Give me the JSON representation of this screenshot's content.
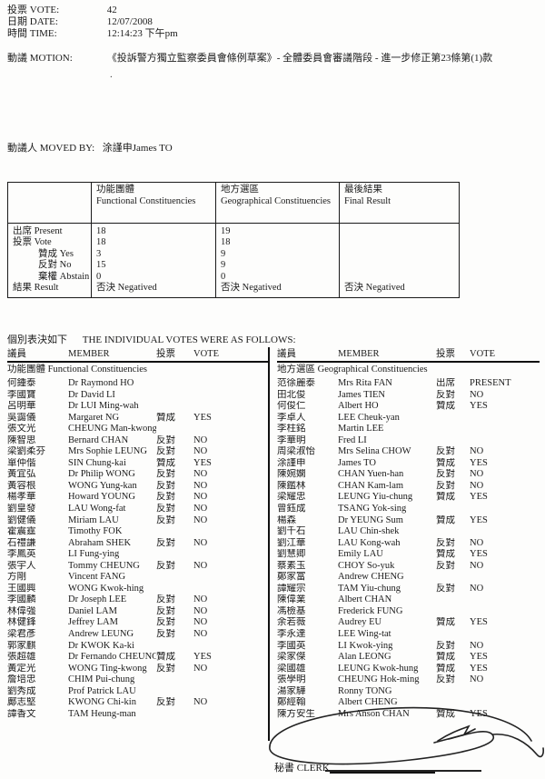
{
  "header": {
    "vote_label": "投票 VOTE:",
    "vote_value": "42",
    "date_label": "日期 DATE:",
    "date_value": "12/07/2008",
    "time_label": "時間 TIME:",
    "time_value": "12:14:23 下午pm",
    "motion_label": "動議 MOTION:",
    "motion_value": "《投訴警方獨立監察委員會條例草案》- 全體委員會審議階段 - 進一步修正第23條第(1)款",
    "stray_mark": ".",
    "moved_by_label": "動議人 MOVED BY:",
    "moved_by_value": "涂謹申James TO"
  },
  "summary": {
    "columns": [
      {
        "zh": "功能團體",
        "en": "Functional Constituencies"
      },
      {
        "zh": "地方選區",
        "en": "Geographical Constituencies"
      },
      {
        "zh": "最後結果",
        "en": "Final Result"
      }
    ],
    "rows": [
      {
        "label": "出席 Present",
        "fc": "18",
        "gc": "19",
        "fr": "",
        "indent": false
      },
      {
        "label": "投票 Vote",
        "fc": "18",
        "gc": "18",
        "fr": "",
        "indent": false
      },
      {
        "label": "贊成 Yes",
        "fc": "3",
        "gc": "9",
        "fr": "",
        "indent": true
      },
      {
        "label": "反對 No",
        "fc": "15",
        "gc": "9",
        "fr": "",
        "indent": true
      },
      {
        "label": "棄權 Abstain",
        "fc": "0",
        "gc": "0",
        "fr": "",
        "indent": true
      },
      {
        "label": "結果 Result",
        "fc": "否決 Negatived",
        "gc": "否決 Negatived",
        "fr": "否決 Negatived",
        "indent": false
      }
    ]
  },
  "individual": {
    "title_zh": "個別表決如下",
    "title_en": "THE INDIVIDUAL VOTES WERE AS FOLLOWS:",
    "col_member_zh": "議員",
    "col_member_en": "MEMBER",
    "col_vote_zh": "投票",
    "col_vote_en": "VOTE",
    "left": {
      "group": "功能團體 Functional Constituencies",
      "rows": [
        {
          "zh": "何鍾泰",
          "en": "Dr Raymond HO",
          "vzh": "",
          "ven": ""
        },
        {
          "zh": "李國寶",
          "en": "Dr David LI",
          "vzh": "",
          "ven": ""
        },
        {
          "zh": "呂明華",
          "en": "Dr LUI Ming-wah",
          "vzh": "",
          "ven": ""
        },
        {
          "zh": "吳靄儀",
          "en": "Margaret NG",
          "vzh": "贊成",
          "ven": "YES"
        },
        {
          "zh": "張文光",
          "en": "CHEUNG Man-kwong",
          "vzh": "",
          "ven": ""
        },
        {
          "zh": "陳智思",
          "en": "Bernard CHAN",
          "vzh": "反對",
          "ven": "NO"
        },
        {
          "zh": "梁劉柔芬",
          "en": "Mrs Sophie LEUNG",
          "vzh": "反對",
          "ven": "NO"
        },
        {
          "zh": "單仲偕",
          "en": "SIN Chung-kai",
          "vzh": "贊成",
          "ven": "YES"
        },
        {
          "zh": "黃宜弘",
          "en": "Dr Philip WONG",
          "vzh": "反對",
          "ven": "NO"
        },
        {
          "zh": "黃容根",
          "en": "WONG Yung-kan",
          "vzh": "反對",
          "ven": "NO"
        },
        {
          "zh": "楊孝華",
          "en": "Howard YOUNG",
          "vzh": "反對",
          "ven": "NO"
        },
        {
          "zh": "劉皇發",
          "en": "LAU Wong-fat",
          "vzh": "反對",
          "ven": "NO"
        },
        {
          "zh": "劉健儀",
          "en": "Miriam LAU",
          "vzh": "反對",
          "ven": "NO"
        },
        {
          "zh": "霍震霆",
          "en": "Timothy FOK",
          "vzh": "",
          "ven": ""
        },
        {
          "zh": "石禮謙",
          "en": "Abraham SHEK",
          "vzh": "反對",
          "ven": "NO"
        },
        {
          "zh": "李鳳英",
          "en": "LI Fung-ying",
          "vzh": "",
          "ven": ""
        },
        {
          "zh": "張宇人",
          "en": "Tommy CHEUNG",
          "vzh": "反對",
          "ven": "NO"
        },
        {
          "zh": "方剛",
          "en": "Vincent FANG",
          "vzh": "",
          "ven": ""
        },
        {
          "zh": "王國興",
          "en": "WONG Kwok-hing",
          "vzh": "",
          "ven": ""
        },
        {
          "zh": "李國麟",
          "en": "Dr Joseph LEE",
          "vzh": "反對",
          "ven": "NO"
        },
        {
          "zh": "林偉強",
          "en": "Daniel LAM",
          "vzh": "反對",
          "ven": "NO"
        },
        {
          "zh": "林健鋒",
          "en": "Jeffrey LAM",
          "vzh": "反對",
          "ven": "NO"
        },
        {
          "zh": "梁君彥",
          "en": "Andrew LEUNG",
          "vzh": "反對",
          "ven": "NO"
        },
        {
          "zh": "郭家麒",
          "en": "Dr KWOK Ka-ki",
          "vzh": "",
          "ven": ""
        },
        {
          "zh": "張超雄",
          "en": "Dr Fernando CHEUNG",
          "vzh": "贊成",
          "ven": "YES"
        },
        {
          "zh": "黃定光",
          "en": "WONG Ting-kwong",
          "vzh": "反對",
          "ven": "NO"
        },
        {
          "zh": "詹培忠",
          "en": "CHIM Pui-chung",
          "vzh": "",
          "ven": ""
        },
        {
          "zh": "劉秀成",
          "en": "Prof Patrick LAU",
          "vzh": "",
          "ven": ""
        },
        {
          "zh": "鄺志堅",
          "en": "KWONG Chi-kin",
          "vzh": "反對",
          "ven": "NO"
        },
        {
          "zh": "譚香文",
          "en": "TAM Heung-man",
          "vzh": "",
          "ven": ""
        }
      ]
    },
    "right": {
      "group": "地方選區 Geographical Constituencies",
      "rows": [
        {
          "zh": "范徐麗泰",
          "en": "Mrs Rita FAN",
          "vzh": "出席",
          "ven": "PRESENT"
        },
        {
          "zh": "田北俊",
          "en": "James TIEN",
          "vzh": "反對",
          "ven": "NO"
        },
        {
          "zh": "何俊仁",
          "en": "Albert HO",
          "vzh": "贊成",
          "ven": "YES"
        },
        {
          "zh": "李卓人",
          "en": "LEE Cheuk-yan",
          "vzh": "",
          "ven": ""
        },
        {
          "zh": "李柱銘",
          "en": "Martin LEE",
          "vzh": "",
          "ven": ""
        },
        {
          "zh": "李華明",
          "en": "Fred LI",
          "vzh": "",
          "ven": ""
        },
        {
          "zh": "周梁淑怡",
          "en": "Mrs Selina CHOW",
          "vzh": "反對",
          "ven": "NO"
        },
        {
          "zh": "涂謹申",
          "en": "James TO",
          "vzh": "贊成",
          "ven": "YES"
        },
        {
          "zh": "陳婉嫻",
          "en": "CHAN Yuen-han",
          "vzh": "反對",
          "ven": "NO"
        },
        {
          "zh": "陳鑑林",
          "en": "CHAN Kam-lam",
          "vzh": "反對",
          "ven": "NO"
        },
        {
          "zh": "梁耀忠",
          "en": "LEUNG Yiu-chung",
          "vzh": "贊成",
          "ven": "YES"
        },
        {
          "zh": "曾鈺成",
          "en": "TSANG Yok-sing",
          "vzh": "",
          "ven": ""
        },
        {
          "zh": "楊森",
          "en": "Dr YEUNG Sum",
          "vzh": "贊成",
          "ven": "YES"
        },
        {
          "zh": "劉千石",
          "en": "LAU Chin-shek",
          "vzh": "",
          "ven": ""
        },
        {
          "zh": "劉江華",
          "en": "LAU Kong-wah",
          "vzh": "反對",
          "ven": "NO"
        },
        {
          "zh": "劉慧卿",
          "en": "Emily LAU",
          "vzh": "贊成",
          "ven": "YES"
        },
        {
          "zh": "蔡素玉",
          "en": "CHOY So-yuk",
          "vzh": "反對",
          "ven": "NO"
        },
        {
          "zh": "鄭家富",
          "en": "Andrew CHENG",
          "vzh": "",
          "ven": ""
        },
        {
          "zh": "譚耀宗",
          "en": "TAM Yiu-chung",
          "vzh": "反對",
          "ven": "NO"
        },
        {
          "zh": "陳偉業",
          "en": "Albert CHAN",
          "vzh": "",
          "ven": ""
        },
        {
          "zh": "馮檢基",
          "en": "Frederick FUNG",
          "vzh": "",
          "ven": ""
        },
        {
          "zh": "余若薇",
          "en": "Audrey EU",
          "vzh": "贊成",
          "ven": "YES"
        },
        {
          "zh": "李永達",
          "en": "LEE Wing-tat",
          "vzh": "",
          "ven": ""
        },
        {
          "zh": "李國英",
          "en": "LI Kwok-ying",
          "vzh": "反對",
          "ven": "NO"
        },
        {
          "zh": "梁家傑",
          "en": "Alan LEONG",
          "vzh": "贊成",
          "ven": "YES"
        },
        {
          "zh": "梁國雄",
          "en": "LEUNG Kwok-hung",
          "vzh": "贊成",
          "ven": "YES"
        },
        {
          "zh": "張學明",
          "en": "CHEUNG Hok-ming",
          "vzh": "反對",
          "ven": "NO"
        },
        {
          "zh": "湯家驊",
          "en": "Ronny TONG",
          "vzh": "",
          "ven": ""
        },
        {
          "zh": "鄭經翰",
          "en": "Albert CHENG",
          "vzh": "",
          "ven": ""
        },
        {
          "zh": "陳方安生",
          "en": "Mrs Anson CHAN",
          "vzh": "贊成",
          "ven": "YES"
        }
      ]
    }
  },
  "footer": {
    "clerk_label": "秘書 CLERK"
  }
}
